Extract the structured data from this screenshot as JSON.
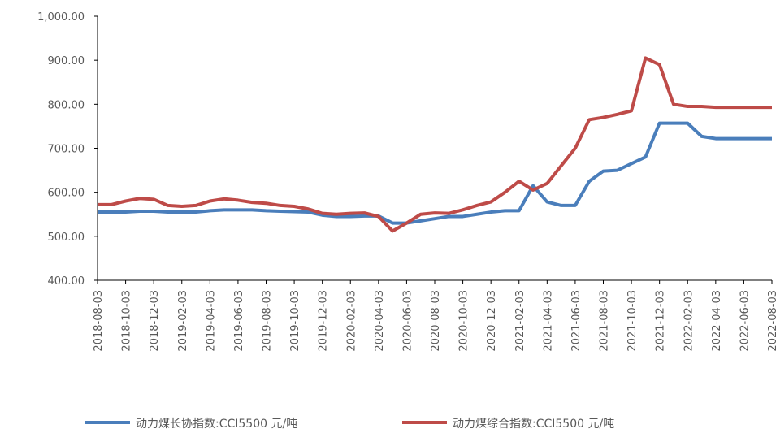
{
  "chart_data": {
    "type": "line",
    "categories": [
      "2018-08-03",
      null,
      "2018-10-03",
      null,
      "2018-12-03",
      null,
      "2019-02-03",
      null,
      "2019-04-03",
      null,
      "2019-06-03",
      null,
      "2019-08-03",
      null,
      "2019-10-03",
      null,
      "2019-12-03",
      null,
      "2020-02-03",
      null,
      "2020-04-03",
      null,
      "2020-06-03",
      null,
      "2020-08-03",
      null,
      "2020-10-03",
      null,
      "2020-12-03",
      null,
      "2021-02-03",
      null,
      "2021-04-03",
      null,
      "2021-06-03",
      null,
      "2021-08-03",
      null,
      "2021-10-03",
      null,
      "2021-12-03",
      null,
      "2022-02-03",
      null,
      "2022-04-03",
      null,
      "2022-06-03",
      null,
      "2022-08-03"
    ],
    "series": [
      {
        "name": "动力煤长协指数:CCI5500 元/吨",
        "color": "#4a7ebb",
        "values": [
          555,
          555,
          555,
          557,
          557,
          555,
          555,
          555,
          558,
          560,
          560,
          560,
          558,
          557,
          556,
          555,
          548,
          545,
          545,
          546,
          546,
          530,
          530,
          535,
          540,
          545,
          545,
          550,
          555,
          558,
          558,
          615,
          578,
          570,
          570,
          625,
          648,
          650,
          665,
          680,
          757,
          757,
          757,
          727,
          722,
          722,
          722,
          722,
          722
        ]
      },
      {
        "name": "动力煤综合指数:CCI5500 元/吨",
        "color": "#be4b48",
        "values": [
          572,
          572,
          580,
          586,
          584,
          570,
          568,
          570,
          580,
          585,
          582,
          577,
          575,
          570,
          568,
          562,
          552,
          550,
          552,
          553,
          545,
          512,
          530,
          550,
          553,
          552,
          560,
          570,
          578,
          600,
          625,
          605,
          620,
          660,
          700,
          765,
          770,
          777,
          785,
          905,
          890,
          800,
          795,
          795,
          793,
          793,
          793,
          793,
          793
        ]
      }
    ],
    "ylim": [
      400,
      1000
    ],
    "yticks": [
      {
        "value": 400,
        "label": "400.00"
      },
      {
        "value": 500,
        "label": "500.00"
      },
      {
        "value": 600,
        "label": "600.00"
      },
      {
        "value": 700,
        "label": "700.00"
      },
      {
        "value": 800,
        "label": "800.00"
      },
      {
        "value": 900,
        "label": "900.00"
      },
      {
        "value": 1000,
        "label": "1,000.00"
      }
    ],
    "grid": false,
    "legend": "bottom"
  }
}
